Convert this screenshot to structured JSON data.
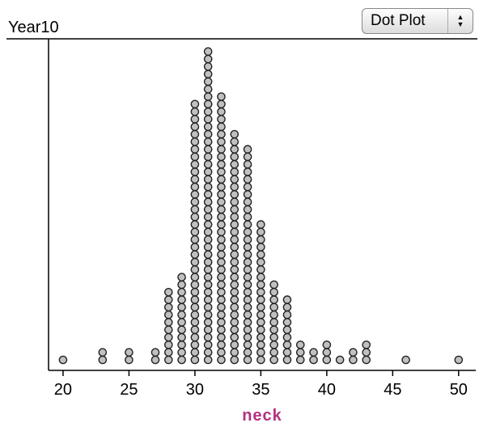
{
  "chart_data": {
    "type": "dotplot",
    "title": "Year10",
    "x_label": "neck",
    "plot_menu": "Dot Plot",
    "x": [
      20,
      23,
      25,
      27,
      28,
      29,
      30,
      31,
      32,
      33,
      34,
      35,
      36,
      37,
      38,
      39,
      40,
      41,
      42,
      43,
      46,
      50
    ],
    "values": [
      1,
      2,
      2,
      2,
      10,
      12,
      35,
      42,
      36,
      31,
      29,
      19,
      11,
      9,
      3,
      2,
      3,
      1,
      2,
      3,
      1,
      1
    ],
    "color": "#c0c0c0",
    "xlim": [
      18.9,
      51.3
    ],
    "xticks": [
      20,
      25,
      30,
      35,
      40,
      45,
      50
    ]
  }
}
